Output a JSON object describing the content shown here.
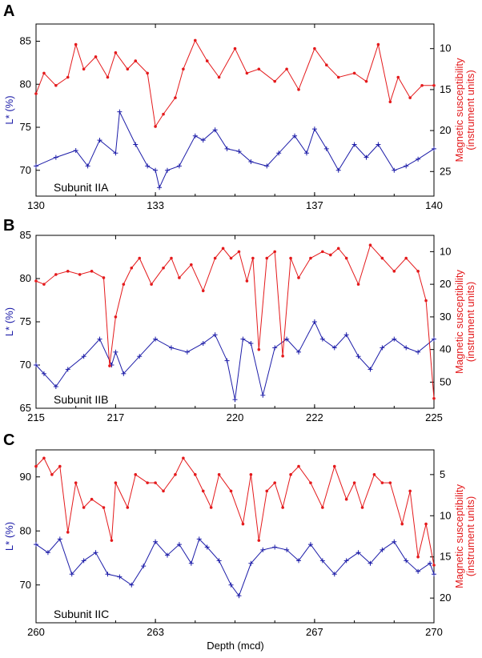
{
  "figure": {
    "xlabel": "Depth (mcd)",
    "left_label": "L* (%)",
    "right_label_line1": "Magnetic susceptibility",
    "right_label_line2": "(instrument units)",
    "colors": {
      "lstar": "#1c1ca8",
      "ms": "#e41a1c",
      "axis": "#000000"
    }
  },
  "chart_data": [
    {
      "type": "line",
      "panel": "A",
      "annotation": "Subunit IIA",
      "xlim": [
        130,
        140
      ],
      "xticks": [
        130,
        133,
        137,
        140
      ],
      "ylim_left": [
        67,
        87
      ],
      "yticks_left": [
        70,
        75,
        80,
        85
      ],
      "ylim_right": [
        28,
        7
      ],
      "yticks_right": [
        10,
        15,
        20,
        25
      ],
      "series": [
        {
          "name": "L* (%)",
          "axis": "left",
          "x": [
            130.0,
            130.5,
            131.0,
            131.3,
            131.6,
            132.0,
            132.1,
            132.5,
            132.8,
            133.0,
            133.1,
            133.3,
            133.6,
            134.0,
            134.2,
            134.5,
            134.8,
            135.1,
            135.4,
            135.8,
            136.1,
            136.5,
            136.8,
            137.0,
            137.3,
            137.6,
            138.0,
            138.3,
            138.6,
            139.0,
            139.3,
            139.6,
            140.0
          ],
          "y": [
            70.5,
            71.5,
            72.3,
            70.5,
            73.5,
            72.0,
            76.8,
            73.0,
            70.5,
            70.0,
            68.0,
            70.0,
            70.5,
            74.0,
            73.5,
            74.7,
            72.5,
            72.2,
            71.0,
            70.5,
            72.0,
            74.0,
            72.0,
            74.8,
            72.5,
            70.0,
            73.0,
            71.5,
            73.0,
            70.0,
            70.5,
            71.3,
            72.5
          ]
        },
        {
          "name": "Magnetic susceptibility",
          "axis": "right",
          "x": [
            130.0,
            130.2,
            130.5,
            130.8,
            131.0,
            131.2,
            131.5,
            131.8,
            132.0,
            132.3,
            132.5,
            132.8,
            133.0,
            133.2,
            133.5,
            133.7,
            134.0,
            134.3,
            134.6,
            135.0,
            135.3,
            135.6,
            136.0,
            136.3,
            136.6,
            137.0,
            137.3,
            137.6,
            138.0,
            138.3,
            138.6,
            138.9,
            139.1,
            139.4,
            139.7,
            140.0
          ],
          "y": [
            15.5,
            13.0,
            14.5,
            13.5,
            9.5,
            12.5,
            11.0,
            13.5,
            10.5,
            12.5,
            11.5,
            13.0,
            19.5,
            18.0,
            16.0,
            12.5,
            9.0,
            11.5,
            13.5,
            10.0,
            13.0,
            12.5,
            14.0,
            12.5,
            15.0,
            10.0,
            12.0,
            13.5,
            13.0,
            14.0,
            9.5,
            16.5,
            13.5,
            16.0,
            14.5,
            14.5
          ]
        }
      ]
    },
    {
      "type": "line",
      "panel": "B",
      "annotation": "Subunit IIB",
      "xlim": [
        215,
        225
      ],
      "xticks": [
        215,
        217,
        220,
        222,
        225
      ],
      "ylim_left": [
        65,
        85
      ],
      "yticks_left": [
        65,
        70,
        75,
        80,
        85
      ],
      "ylim_right": [
        58,
        5
      ],
      "yticks_right": [
        10,
        20,
        30,
        40,
        50
      ],
      "series": [
        {
          "name": "L* (%)",
          "axis": "left",
          "x": [
            215.0,
            215.2,
            215.5,
            215.8,
            216.2,
            216.6,
            216.9,
            217.0,
            217.2,
            217.6,
            218.0,
            218.4,
            218.8,
            219.2,
            219.5,
            219.8,
            220.0,
            220.2,
            220.4,
            220.7,
            221.0,
            221.3,
            221.6,
            222.0,
            222.2,
            222.5,
            222.8,
            223.1,
            223.4,
            223.7,
            224.0,
            224.3,
            224.6,
            225.0
          ],
          "y": [
            70.0,
            69.0,
            67.5,
            69.5,
            71.0,
            73.0,
            70.0,
            71.5,
            69.0,
            71.0,
            73.0,
            72.0,
            71.5,
            72.5,
            73.5,
            70.5,
            66.0,
            73.0,
            72.5,
            66.5,
            72.0,
            73.0,
            71.5,
            75.0,
            73.0,
            72.0,
            73.5,
            71.0,
            69.5,
            72.0,
            73.0,
            72.0,
            71.5,
            73.0
          ]
        },
        {
          "name": "Magnetic susceptibility",
          "axis": "right",
          "x": [
            215.0,
            215.2,
            215.5,
            215.8,
            216.1,
            216.4,
            216.7,
            216.85,
            217.0,
            217.2,
            217.4,
            217.6,
            217.9,
            218.2,
            218.4,
            218.6,
            218.9,
            219.2,
            219.5,
            219.7,
            219.9,
            220.1,
            220.3,
            220.45,
            220.6,
            220.8,
            221.0,
            221.2,
            221.4,
            221.6,
            221.9,
            222.2,
            222.4,
            222.6,
            222.8,
            223.1,
            223.4,
            223.7,
            224.0,
            224.3,
            224.6,
            224.8,
            225.0
          ],
          "y": [
            19,
            20,
            17,
            16,
            17,
            16,
            18,
            45,
            30,
            20,
            15,
            12,
            20,
            15,
            12,
            18,
            14,
            22,
            12,
            9,
            12,
            10,
            19,
            12,
            40,
            12,
            10,
            42,
            12,
            18,
            12,
            10,
            11,
            9,
            12,
            20,
            8,
            12,
            16,
            12,
            16,
            25,
            55
          ]
        }
      ]
    },
    {
      "type": "line",
      "panel": "C",
      "annotation": "Subunit IIC",
      "xlim": [
        260,
        270
      ],
      "xticks": [
        260,
        263,
        267,
        270
      ],
      "ylim_left": [
        63,
        95
      ],
      "yticks_left": [
        70,
        80,
        90
      ],
      "ylim_right": [
        23,
        2
      ],
      "yticks_right": [
        5,
        10,
        15,
        20
      ],
      "series": [
        {
          "name": "L* (%)",
          "axis": "left",
          "x": [
            260.0,
            260.3,
            260.6,
            260.9,
            261.2,
            261.5,
            261.8,
            262.1,
            262.4,
            262.7,
            263.0,
            263.3,
            263.6,
            263.9,
            264.1,
            264.3,
            264.6,
            264.9,
            265.1,
            265.4,
            265.7,
            266.0,
            266.3,
            266.6,
            266.9,
            267.2,
            267.5,
            267.8,
            268.1,
            268.4,
            268.7,
            269.0,
            269.3,
            269.6,
            269.9,
            270.0
          ],
          "y": [
            77.5,
            76.0,
            78.5,
            72.0,
            74.5,
            76.0,
            72.0,
            71.5,
            70.0,
            73.5,
            78.0,
            75.5,
            77.5,
            74.0,
            78.5,
            77.0,
            74.5,
            70.0,
            68.0,
            74.0,
            76.5,
            77.0,
            76.5,
            74.5,
            77.5,
            74.5,
            72.0,
            74.5,
            76.0,
            74.0,
            76.5,
            78.0,
            74.5,
            72.5,
            74.0,
            72.0
          ]
        },
        {
          "name": "Magnetic susceptibility",
          "axis": "right",
          "x": [
            260.0,
            260.2,
            260.4,
            260.6,
            260.8,
            261.0,
            261.2,
            261.4,
            261.7,
            261.9,
            262.0,
            262.3,
            262.5,
            262.8,
            263.0,
            263.2,
            263.5,
            263.7,
            264.0,
            264.2,
            264.4,
            264.6,
            264.9,
            265.2,
            265.4,
            265.6,
            265.8,
            266.0,
            266.2,
            266.4,
            266.6,
            266.9,
            267.2,
            267.5,
            267.8,
            268.0,
            268.2,
            268.5,
            268.7,
            268.9,
            269.2,
            269.4,
            269.6,
            269.8,
            270.0
          ],
          "y": [
            4,
            3,
            5,
            4,
            12,
            6,
            9,
            8,
            9,
            13,
            6,
            9,
            5,
            6,
            6,
            7,
            5,
            3,
            5,
            7,
            9,
            5,
            7,
            11,
            5,
            13,
            7,
            6,
            9,
            5,
            4,
            6,
            9,
            4,
            8,
            6,
            9,
            5,
            6,
            6,
            11,
            7,
            15,
            11,
            16
          ]
        }
      ]
    }
  ]
}
